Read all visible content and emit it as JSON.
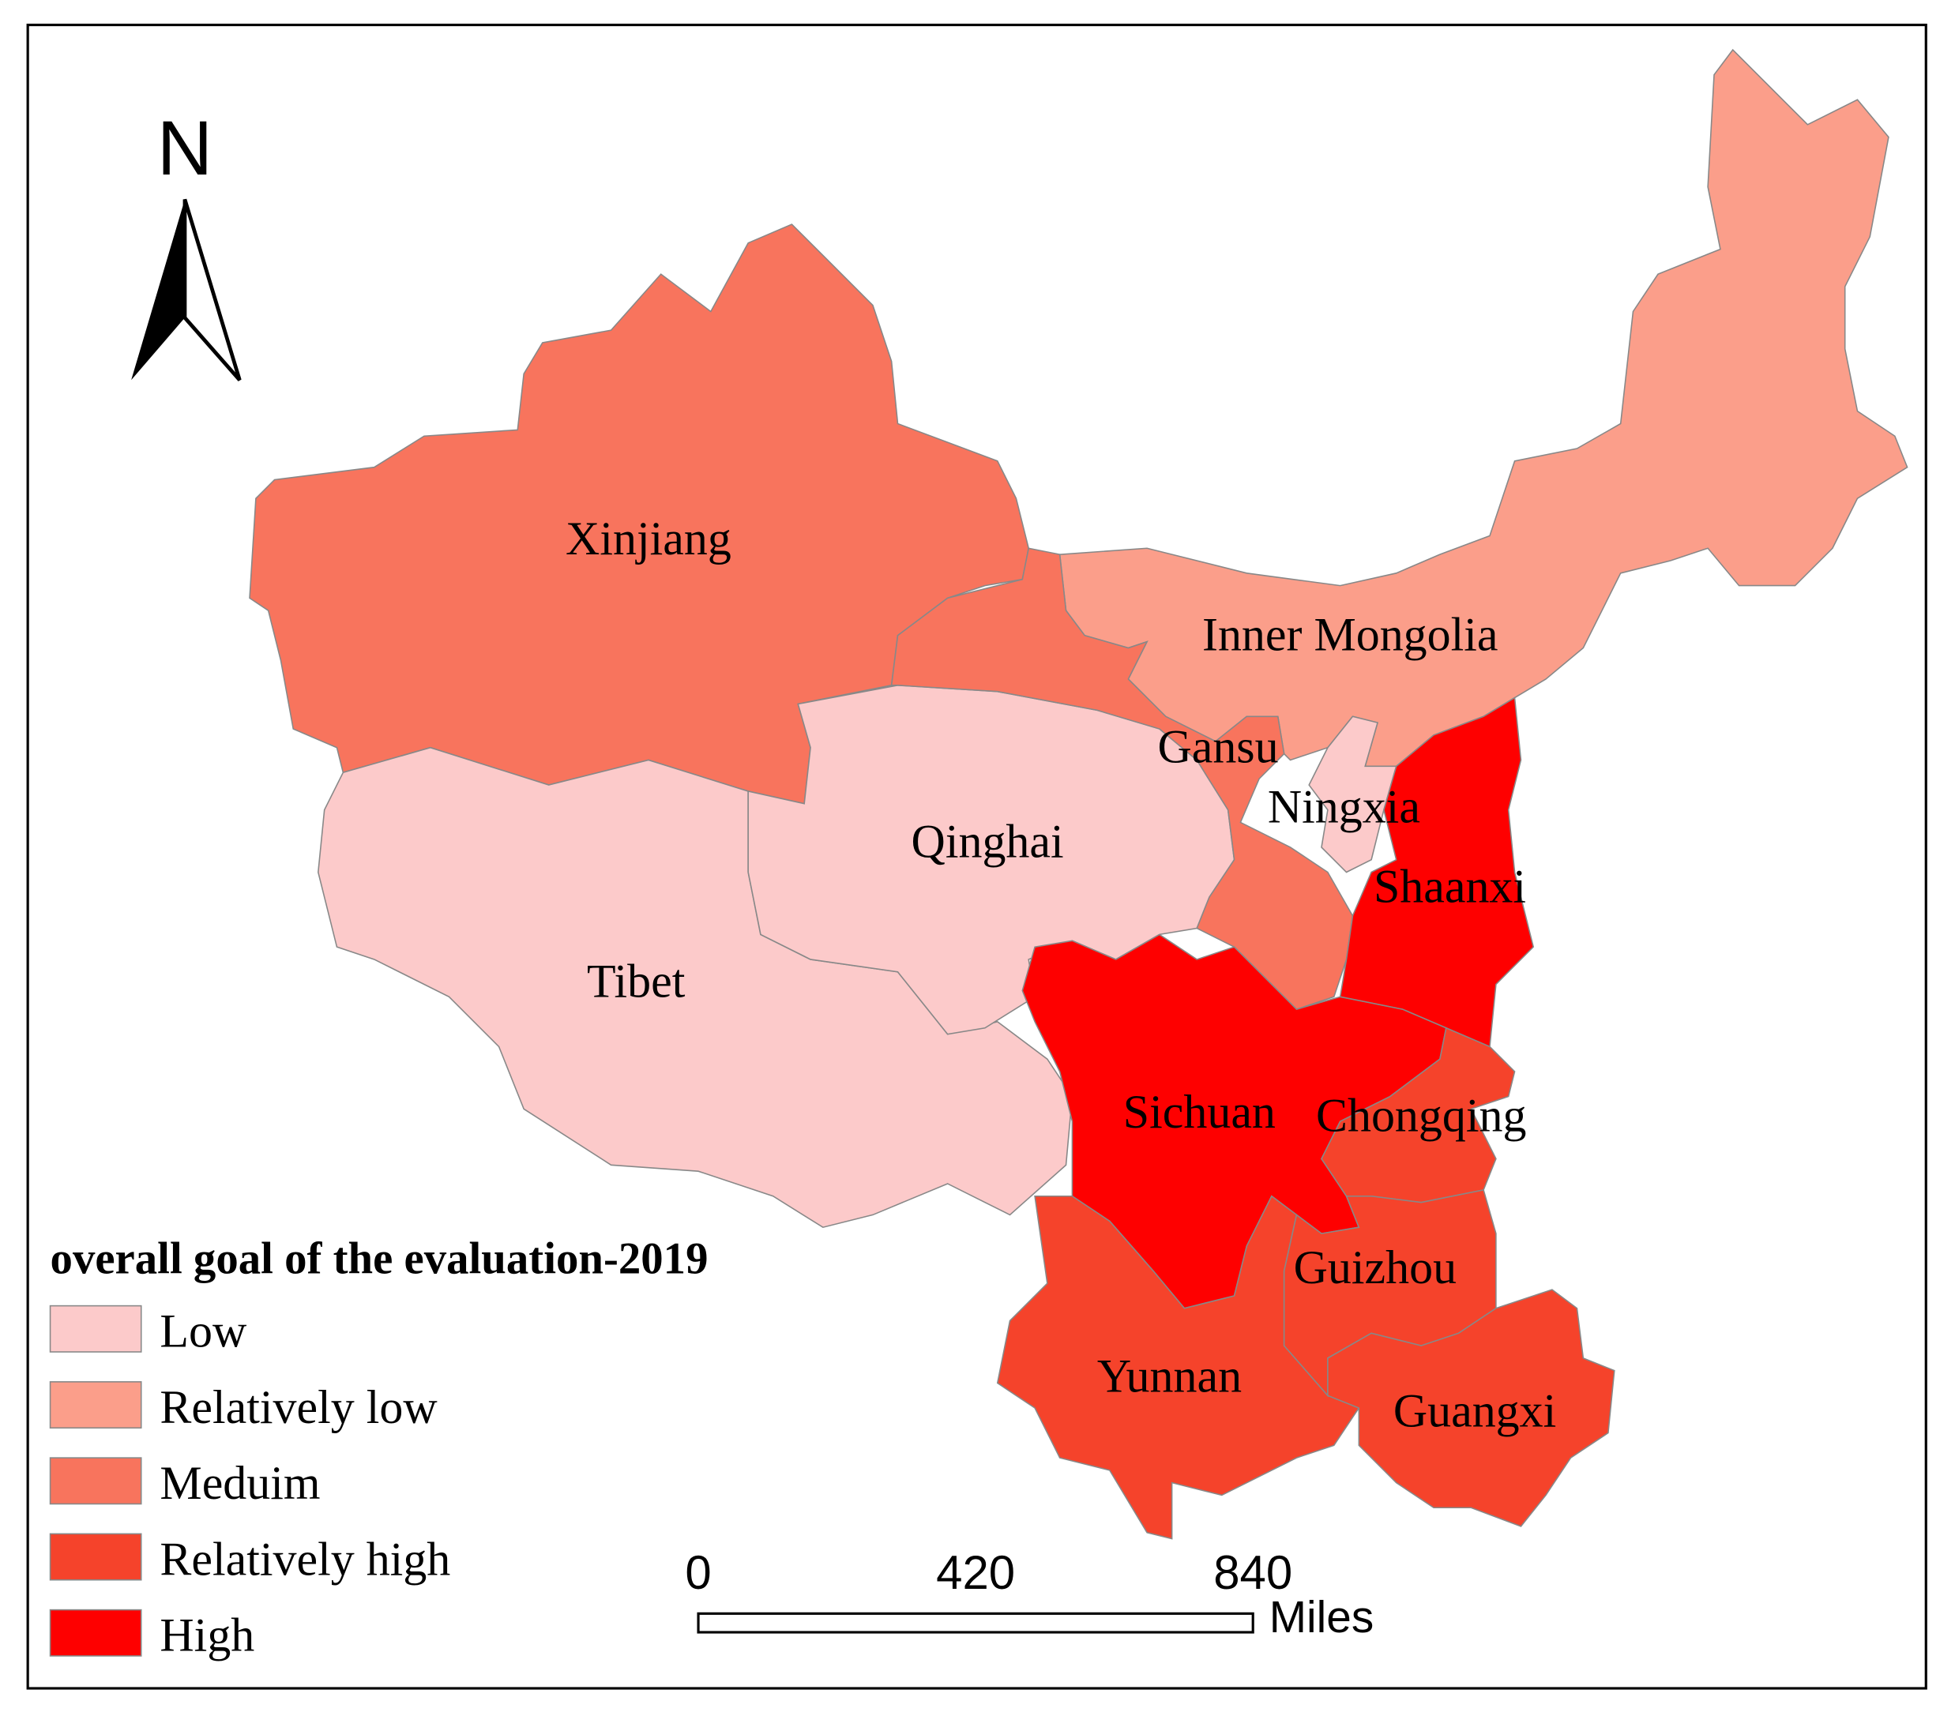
{
  "map": {
    "north_label": "N",
    "legend": {
      "title": "overall goal of the evaluation-2019",
      "items": [
        {
          "label": "Low",
          "color": "#fccaca"
        },
        {
          "label": "Relatively low",
          "color": "#fb9e8a"
        },
        {
          "label": "Meduim",
          "color": "#f8745d"
        },
        {
          "label": "Relatively high",
          "color": "#f5432b"
        },
        {
          "label": "High",
          "color": "#fe0000"
        }
      ]
    },
    "regions": [
      {
        "name": "Xinjiang",
        "level": "Meduim"
      },
      {
        "name": "Tibet",
        "level": "Low"
      },
      {
        "name": "Qinghai",
        "level": "Low"
      },
      {
        "name": "Inner Mongolia",
        "level": "Relatively low"
      },
      {
        "name": "Gansu",
        "level": "Meduim"
      },
      {
        "name": "Ningxia",
        "level": "Low"
      },
      {
        "name": "Shaanxi",
        "level": "High"
      },
      {
        "name": "Sichuan",
        "level": "High"
      },
      {
        "name": "Chongqing",
        "level": "Relatively high"
      },
      {
        "name": "Yunnan",
        "level": "Relatively high"
      },
      {
        "name": "Guizhou",
        "level": "Relatively high"
      },
      {
        "name": "Guangxi",
        "level": "Relatively high"
      }
    ],
    "scale_bar": {
      "ticks": [
        0,
        420,
        840
      ],
      "unit": "Miles"
    }
  }
}
